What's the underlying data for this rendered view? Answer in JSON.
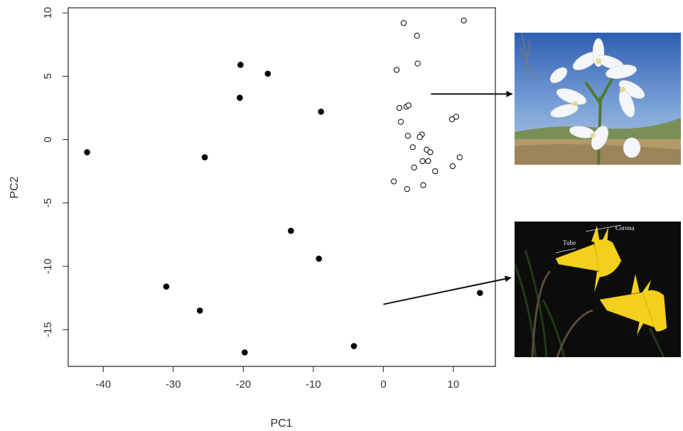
{
  "chart_data": {
    "type": "scatter",
    "title": "",
    "xlabel": "PC1",
    "ylabel": "PC2",
    "xlim": [
      -45,
      16
    ],
    "ylim": [
      -17.9,
      10.4
    ],
    "xticks": [
      -40,
      -30,
      -20,
      -10,
      0,
      10
    ],
    "yticks": [
      -15,
      -10,
      -5,
      0,
      5,
      10
    ],
    "grid": false,
    "series": [
      {
        "marker": "filled-circle",
        "color": "#000000",
        "points": [
          [
            -42.3,
            -1.0
          ],
          [
            -20.4,
            5.9
          ],
          [
            -16.5,
            5.2
          ],
          [
            -20.5,
            3.3
          ],
          [
            -8.9,
            2.2
          ],
          [
            -25.5,
            -1.4
          ],
          [
            -13.2,
            -7.2
          ],
          [
            -9.2,
            -9.4
          ],
          [
            -31.0,
            -11.6
          ],
          [
            -26.2,
            -13.5
          ],
          [
            -19.8,
            -16.8
          ],
          [
            -4.2,
            -16.3
          ],
          [
            13.8,
            -12.1
          ]
        ]
      },
      {
        "marker": "open-circle",
        "color": "#000000",
        "points": [
          [
            2.9,
            9.2
          ],
          [
            11.5,
            9.4
          ],
          [
            4.8,
            8.2
          ],
          [
            4.9,
            6.0
          ],
          [
            1.9,
            5.5
          ],
          [
            3.3,
            2.6
          ],
          [
            3.6,
            2.7
          ],
          [
            2.3,
            2.5
          ],
          [
            10.4,
            1.8
          ],
          [
            9.8,
            1.6
          ],
          [
            2.5,
            1.4
          ],
          [
            3.5,
            0.3
          ],
          [
            5.5,
            0.4
          ],
          [
            5.2,
            0.2
          ],
          [
            4.2,
            -0.6
          ],
          [
            6.2,
            -0.8
          ],
          [
            6.7,
            -1.0
          ],
          [
            10.9,
            -1.4
          ],
          [
            5.6,
            -1.7
          ],
          [
            6.4,
            -1.7
          ],
          [
            4.4,
            -2.2
          ],
          [
            9.9,
            -2.1
          ],
          [
            7.4,
            -2.5
          ],
          [
            1.5,
            -3.3
          ],
          [
            5.7,
            -3.6
          ],
          [
            3.4,
            -3.9
          ]
        ]
      }
    ],
    "annotations": [
      {
        "from": [
          6.8,
          3.6
        ],
        "to": [
          18.4,
          3.6
        ],
        "target": "photo-white"
      },
      {
        "from": [
          0.0,
          -13.0
        ],
        "to": [
          18.2,
          -10.9
        ],
        "target": "photo-yellow"
      }
    ]
  },
  "photos": {
    "white": {
      "icon": "white-narcissus-photo"
    },
    "yellow": {
      "icon": "yellow-narcissus-photo",
      "labels": {
        "tube": "Tube",
        "corona": "Corona"
      }
    }
  }
}
